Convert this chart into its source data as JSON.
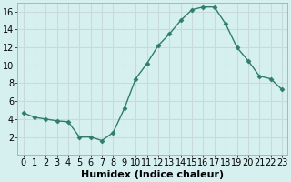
{
  "x": [
    0,
    1,
    2,
    3,
    4,
    5,
    6,
    7,
    8,
    9,
    10,
    11,
    12,
    13,
    14,
    15,
    16,
    17,
    18,
    19,
    20,
    21,
    22,
    23
  ],
  "y": [
    4.7,
    4.2,
    4.0,
    3.8,
    3.7,
    2.0,
    2.0,
    1.6,
    2.5,
    5.2,
    8.5,
    10.2,
    12.2,
    13.5,
    15.0,
    16.2,
    16.5,
    16.5,
    14.6,
    12.0,
    10.5,
    8.8,
    8.5,
    7.3
  ],
  "line_color": "#2e7d6e",
  "marker": "D",
  "marker_size": 2.5,
  "bg_color": "#d6f0f0",
  "grid_color": "#c8dada",
  "xlabel": "Humidex (Indice chaleur)",
  "xlim": [
    -0.5,
    23.5
  ],
  "ylim": [
    0,
    17
  ],
  "yticks": [
    2,
    4,
    6,
    8,
    10,
    12,
    14,
    16
  ],
  "xticks": [
    0,
    1,
    2,
    3,
    4,
    5,
    6,
    7,
    8,
    9,
    10,
    11,
    12,
    13,
    14,
    15,
    16,
    17,
    18,
    19,
    20,
    21,
    22,
    23
  ],
  "xlabel_fontsize": 8,
  "tick_fontsize": 7
}
